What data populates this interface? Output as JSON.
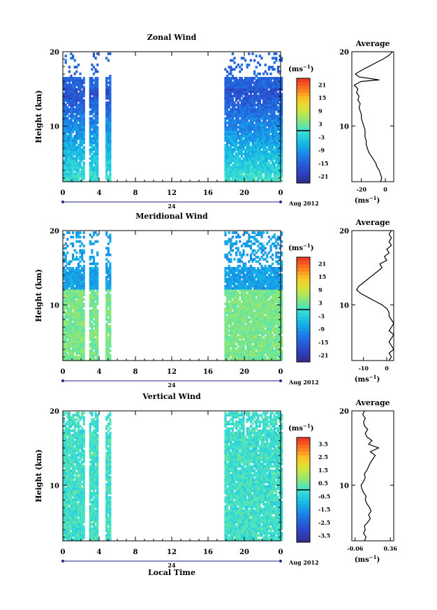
{
  "xlabel": "Local Time",
  "date_label": "Aug 2012",
  "day_label": "24",
  "chart_data": [
    {
      "type": "heatmap",
      "title": "Zonal Wind",
      "ylabel": "Height (km)",
      "xticks": [
        "0",
        "4",
        "8",
        "12",
        "16",
        "20",
        "0"
      ],
      "ylim": [
        2.5,
        20
      ],
      "yticks": [
        "10",
        "20"
      ],
      "cbar_unit": "(ms",
      "cbar_ticks": [
        "21",
        "15",
        "9",
        "3",
        "-3",
        "-9",
        "-15",
        "-21"
      ],
      "cbar_range": [
        -24,
        24
      ],
      "avg_title": "Average",
      "avg_xticks": [
        "-20",
        "0"
      ],
      "avg_xlim": [
        -28,
        7
      ],
      "avg_profile": [
        [
          2.5,
          -4
        ],
        [
          3.0,
          -3
        ],
        [
          3.5,
          -4
        ],
        [
          4.0,
          -5
        ],
        [
          4.5,
          -7
        ],
        [
          5.0,
          -8
        ],
        [
          5.5,
          -10
        ],
        [
          6.0,
          -12
        ],
        [
          6.5,
          -14
        ],
        [
          7.0,
          -15
        ],
        [
          7.5,
          -16
        ],
        [
          8.0,
          -16
        ],
        [
          8.5,
          -17
        ],
        [
          9.0,
          -17
        ],
        [
          9.5,
          -17
        ],
        [
          10.0,
          -18
        ],
        [
          10.5,
          -19
        ],
        [
          11.0,
          -20
        ],
        [
          11.5,
          -20
        ],
        [
          12.0,
          -21
        ],
        [
          12.5,
          -22
        ],
        [
          13.0,
          -21
        ],
        [
          13.5,
          -23
        ],
        [
          14.0,
          -22
        ],
        [
          14.5,
          -24
        ],
        [
          15.0,
          -23
        ],
        [
          15.5,
          -26
        ],
        [
          16.0,
          -20
        ],
        [
          16.2,
          -5
        ],
        [
          16.6,
          -22
        ],
        [
          17.0,
          -25
        ],
        [
          17.5,
          -20
        ],
        [
          18.0,
          -14
        ],
        [
          18.5,
          -8
        ],
        [
          19.0,
          -2
        ],
        [
          19.5,
          3
        ],
        [
          20.0,
          6
        ]
      ]
    },
    {
      "type": "heatmap",
      "title": "Meridional Wind",
      "ylabel": "Height (km)",
      "xticks": [
        "0",
        "4",
        "8",
        "12",
        "16",
        "20",
        "0"
      ],
      "ylim": [
        2.5,
        20
      ],
      "yticks": [
        "10",
        "20"
      ],
      "cbar_unit": "(ms",
      "cbar_ticks": [
        "21",
        "15",
        "9",
        "3",
        "-3",
        "-9",
        "-15",
        "-21"
      ],
      "cbar_range": [
        -24,
        24
      ],
      "avg_title": "Average",
      "avg_xticks": [
        "-10",
        "0"
      ],
      "avg_xlim": [
        -15,
        3
      ],
      "avg_profile": [
        [
          2.5,
          1
        ],
        [
          3.0,
          2
        ],
        [
          3.5,
          1
        ],
        [
          4.0,
          3
        ],
        [
          4.5,
          2
        ],
        [
          5.0,
          1
        ],
        [
          5.5,
          2
        ],
        [
          6.0,
          3
        ],
        [
          6.5,
          1
        ],
        [
          7.0,
          2
        ],
        [
          7.5,
          3
        ],
        [
          8.0,
          2
        ],
        [
          8.5,
          1
        ],
        [
          9.0,
          1
        ],
        [
          9.5,
          0
        ],
        [
          10.0,
          -2
        ],
        [
          10.5,
          -5
        ],
        [
          11.0,
          -8
        ],
        [
          11.5,
          -11
        ],
        [
          12.0,
          -13
        ],
        [
          12.5,
          -12
        ],
        [
          13.0,
          -10
        ],
        [
          13.5,
          -8
        ],
        [
          14.0,
          -6
        ],
        [
          14.5,
          -4
        ],
        [
          15.0,
          -2
        ],
        [
          15.5,
          -3
        ],
        [
          16.0,
          0
        ],
        [
          16.5,
          -1
        ],
        [
          17.0,
          1
        ],
        [
          17.5,
          0
        ],
        [
          18.0,
          2
        ],
        [
          18.5,
          1
        ],
        [
          19.0,
          2
        ],
        [
          19.5,
          1
        ],
        [
          20.0,
          2
        ]
      ]
    },
    {
      "type": "heatmap",
      "title": "Vertical Wind",
      "ylabel": "Height (km)",
      "xticks": [
        "0",
        "4",
        "8",
        "12",
        "16",
        "20",
        "0"
      ],
      "ylim": [
        2.5,
        20
      ],
      "yticks": [
        "10",
        "20"
      ],
      "cbar_unit": "(ms",
      "cbar_ticks": [
        "3.5",
        "2.5",
        "1.5",
        "0.5",
        "-0.5",
        "-1.5",
        "-2.5",
        "-3.5"
      ],
      "cbar_range": [
        -4,
        4
      ],
      "avg_title": "Average",
      "avg_xticks": [
        "-0.06",
        "0.36"
      ],
      "avg_xlim": [
        -0.1,
        0.4
      ],
      "avg_profile": [
        [
          2.5,
          0.05
        ],
        [
          3.0,
          0.07
        ],
        [
          3.5,
          0.04
        ],
        [
          4.0,
          0.06
        ],
        [
          4.5,
          0.05
        ],
        [
          5.0,
          0.09
        ],
        [
          5.5,
          0.12
        ],
        [
          6.0,
          0.1
        ],
        [
          6.5,
          0.13
        ],
        [
          7.0,
          0.11
        ],
        [
          7.5,
          0.08
        ],
        [
          8.0,
          0.06
        ],
        [
          8.5,
          0.07
        ],
        [
          9.0,
          0.04
        ],
        [
          9.5,
          0.02
        ],
        [
          10.0,
          0.01
        ],
        [
          10.5,
          0.04
        ],
        [
          11.0,
          0.06
        ],
        [
          11.5,
          0.05
        ],
        [
          12.0,
          0.08
        ],
        [
          12.5,
          0.1
        ],
        [
          13.0,
          0.12
        ],
        [
          13.5,
          0.15
        ],
        [
          14.0,
          0.18
        ],
        [
          14.5,
          0.12
        ],
        [
          15.0,
          0.22
        ],
        [
          15.5,
          0.1
        ],
        [
          16.0,
          0.14
        ],
        [
          16.5,
          0.08
        ],
        [
          17.0,
          0.06
        ],
        [
          17.5,
          0.09
        ],
        [
          18.0,
          0.05
        ],
        [
          18.5,
          0.04
        ],
        [
          19.0,
          0.06
        ],
        [
          19.5,
          0.03
        ],
        [
          20.0,
          0.05
        ]
      ]
    }
  ]
}
